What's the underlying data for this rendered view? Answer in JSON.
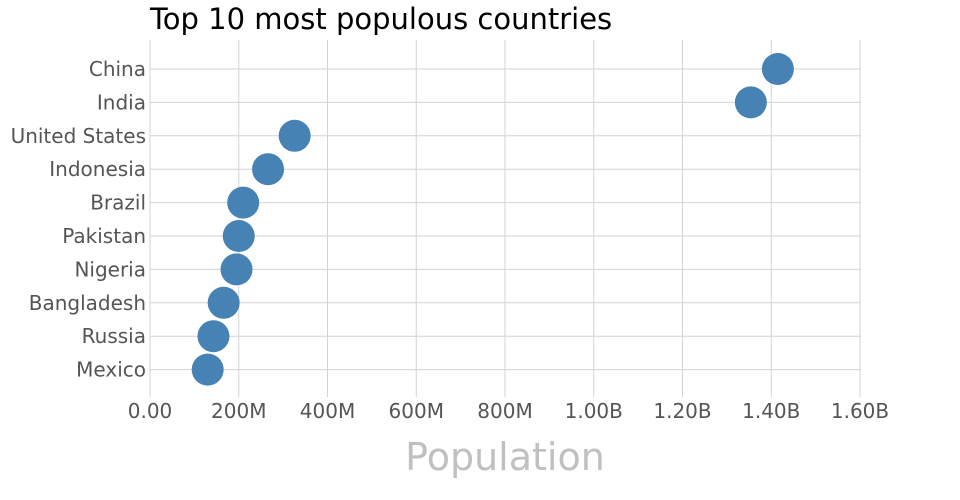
{
  "chart_data": {
    "type": "scatter",
    "title": "Top 10 most populous countries",
    "xlabel": "Population",
    "ylabel": "",
    "xlim": [
      0,
      1600000000
    ],
    "x_ticks": [
      0,
      200000000,
      400000000,
      600000000,
      800000000,
      1000000000,
      1200000000,
      1400000000,
      1600000000
    ],
    "x_tick_labels": [
      "0.00",
      "200M",
      "400M",
      "600M",
      "800M",
      "1.00B",
      "1.20B",
      "1.40B",
      "1.60B"
    ],
    "categories": [
      "China",
      "India",
      "United States",
      "Indonesia",
      "Brazil",
      "Pakistan",
      "Nigeria",
      "Bangladesh",
      "Russia",
      "Mexico"
    ],
    "values": [
      1415000000,
      1354000000,
      326000000,
      266000000,
      210000000,
      200000000,
      195000000,
      166000000,
      143000000,
      130000000
    ],
    "grid": true,
    "marker_color": "#4682b4"
  }
}
